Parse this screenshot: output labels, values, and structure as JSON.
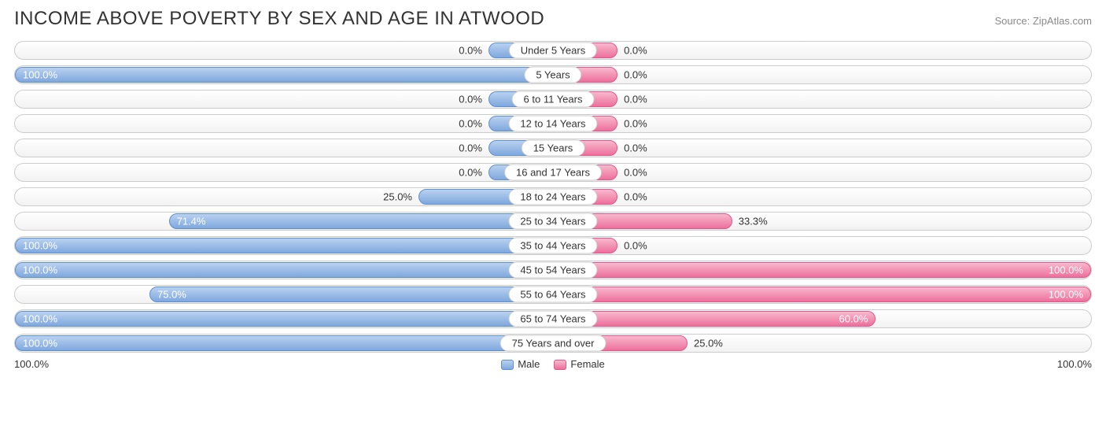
{
  "title": "INCOME ABOVE POVERTY BY SEX AND AGE IN ATWOOD",
  "source": "Source: ZipAtlas.com",
  "axis": {
    "left": "100.0%",
    "right": "100.0%"
  },
  "legend": {
    "male": "Male",
    "female": "Female"
  },
  "colors": {
    "male_fill_top": "#b9d1f0",
    "male_fill_bot": "#7fa8dd",
    "male_border": "#5f8fd3",
    "female_fill_top": "#f8b9ce",
    "female_fill_bot": "#ed6f9b",
    "female_border": "#e3568a",
    "track_border": "#cccccc",
    "text": "#333333",
    "source_text": "#8a8a8a"
  },
  "min_bar_pct": 12,
  "rows": [
    {
      "label": "Under 5 Years",
      "male": 0.0,
      "female": 0.0
    },
    {
      "label": "5 Years",
      "male": 100.0,
      "female": 0.0
    },
    {
      "label": "6 to 11 Years",
      "male": 0.0,
      "female": 0.0
    },
    {
      "label": "12 to 14 Years",
      "male": 0.0,
      "female": 0.0
    },
    {
      "label": "15 Years",
      "male": 0.0,
      "female": 0.0
    },
    {
      "label": "16 and 17 Years",
      "male": 0.0,
      "female": 0.0
    },
    {
      "label": "18 to 24 Years",
      "male": 25.0,
      "female": 0.0
    },
    {
      "label": "25 to 34 Years",
      "male": 71.4,
      "female": 33.3
    },
    {
      "label": "35 to 44 Years",
      "male": 100.0,
      "female": 0.0
    },
    {
      "label": "45 to 54 Years",
      "male": 100.0,
      "female": 100.0
    },
    {
      "label": "55 to 64 Years",
      "male": 75.0,
      "female": 100.0
    },
    {
      "label": "65 to 74 Years",
      "male": 100.0,
      "female": 60.0
    },
    {
      "label": "75 Years and over",
      "male": 100.0,
      "female": 25.0
    }
  ]
}
